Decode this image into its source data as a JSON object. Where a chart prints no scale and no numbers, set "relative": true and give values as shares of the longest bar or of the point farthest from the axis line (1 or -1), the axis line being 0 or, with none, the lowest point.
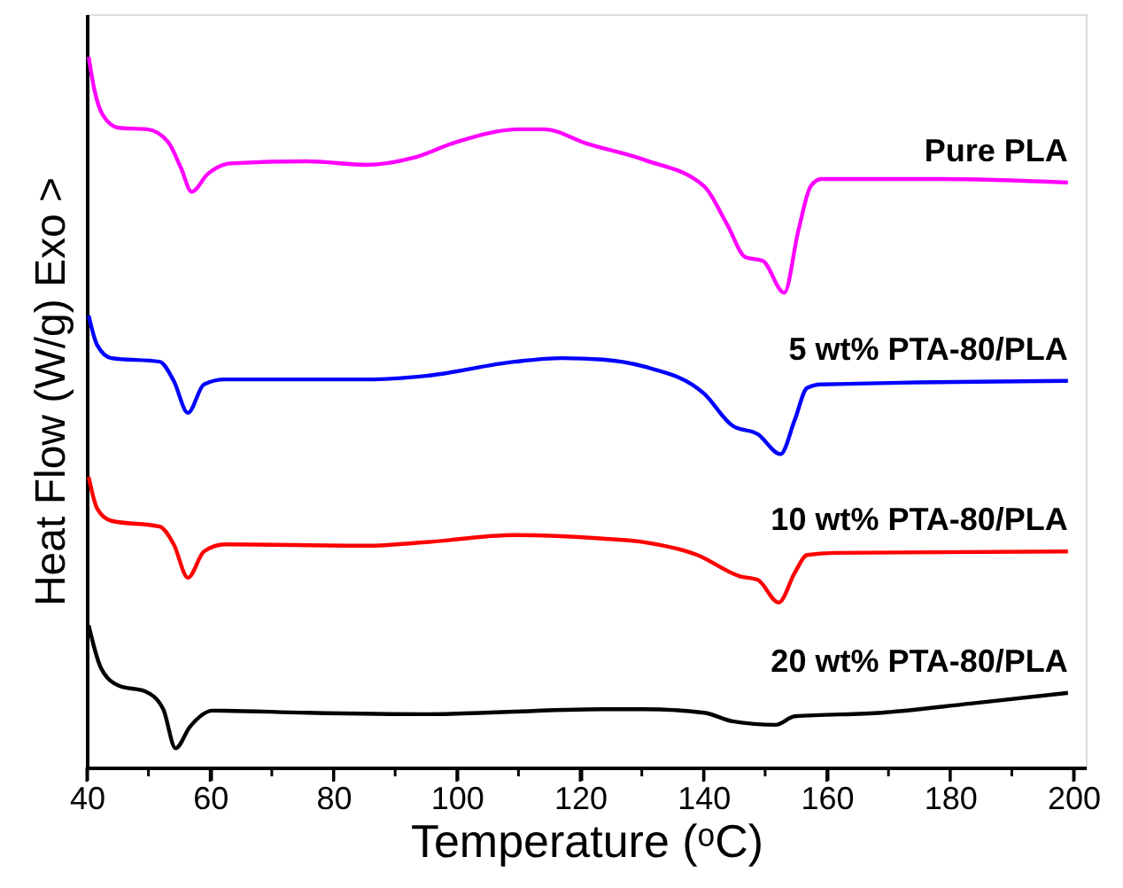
{
  "chart_data": {
    "type": "line",
    "xlabel": "Temperature (ᵒC)",
    "ylabel": "Heat Flow (W/g) Exo >",
    "relative": true,
    "xlim": [
      40,
      202
    ],
    "xticks": [
      40,
      {
        "value": 50,
        "label": null
      },
      60,
      {
        "value": 70,
        "label": null
      },
      80,
      {
        "value": 90,
        "label": null
      },
      100,
      {
        "value": 110,
        "label": null
      },
      120,
      {
        "value": 130,
        "label": null
      },
      140,
      {
        "value": 150,
        "label": null
      },
      160,
      {
        "value": 170,
        "label": null
      },
      180,
      {
        "value": 190,
        "label": null
      },
      200
    ],
    "tick_labels": "x",
    "grid": false,
    "marker": "none",
    "line_style": "solid",
    "series": [
      {
        "name": "Pure PLA",
        "color": "#ff00ff",
        "x": [
          40.3,
          41.2,
          42.6,
          45.2,
          49.8,
          53.2,
          55.3,
          57.0,
          59.6,
          63.3,
          75.7,
          85.5,
          93.0,
          99.9,
          110.2,
          114.2,
          121.0,
          130.4,
          140.1,
          143.9,
          146.8,
          149.6,
          153.1,
          155.4,
          157.4,
          159.1,
          178.4,
          199.1
        ],
        "values": [
          1.0,
          0.955,
          0.918,
          0.9,
          0.898,
          0.88,
          0.843,
          0.81,
          0.835,
          0.85,
          0.853,
          0.848,
          0.858,
          0.88,
          0.898,
          0.898,
          0.878,
          0.855,
          0.818,
          0.763,
          0.718,
          0.713,
          0.668,
          0.756,
          0.818,
          0.828,
          0.828,
          0.823
        ]
      },
      {
        "name": "5 wt% PTA-80/PLA",
        "color": "#0000ff",
        "x": [
          40.3,
          41.7,
          44.0,
          51.8,
          54.1,
          56.4,
          59.0,
          62.4,
          85.5,
          95.0,
          109.4,
          117.1,
          123.7,
          130.4,
          140.1,
          144.7,
          148.8,
          152.5,
          154.8,
          156.8,
          159.1,
          199.1
        ],
        "values": [
          0.636,
          0.594,
          0.576,
          0.571,
          0.544,
          0.499,
          0.539,
          0.546,
          0.546,
          0.551,
          0.571,
          0.576,
          0.574,
          0.564,
          0.526,
          0.481,
          0.469,
          0.441,
          0.489,
          0.534,
          0.539,
          0.544
        ]
      },
      {
        "name": "10 wt% PTA-80/PLA",
        "color": "#ff0000",
        "x": [
          40.3,
          41.7,
          44.0,
          51.8,
          54.1,
          56.4,
          59.0,
          62.4,
          85.5,
          95.0,
          109.4,
          123.7,
          130.4,
          139.0,
          145.9,
          148.8,
          152.2,
          154.8,
          156.8,
          161.2,
          199.1
        ],
        "values": [
          0.409,
          0.364,
          0.347,
          0.339,
          0.314,
          0.267,
          0.304,
          0.314,
          0.312,
          0.317,
          0.327,
          0.322,
          0.317,
          0.299,
          0.269,
          0.264,
          0.232,
          0.274,
          0.299,
          0.302,
          0.304
        ]
      },
      {
        "name": "20 wt% PTA-80/PLA",
        "color": "#000000",
        "x": [
          40.3,
          42.3,
          45.2,
          49.5,
          52.4,
          54.4,
          56.7,
          60.4,
          75.7,
          95.0,
          123.7,
          130.4,
          140.1,
          144.7,
          151.7,
          154.8,
          168.9,
          183.3,
          199.1
        ],
        "values": [
          0.2,
          0.14,
          0.115,
          0.107,
          0.082,
          0.027,
          0.057,
          0.08,
          0.077,
          0.075,
          0.082,
          0.082,
          0.077,
          0.065,
          0.06,
          0.072,
          0.077,
          0.09,
          0.105
        ]
      }
    ]
  }
}
